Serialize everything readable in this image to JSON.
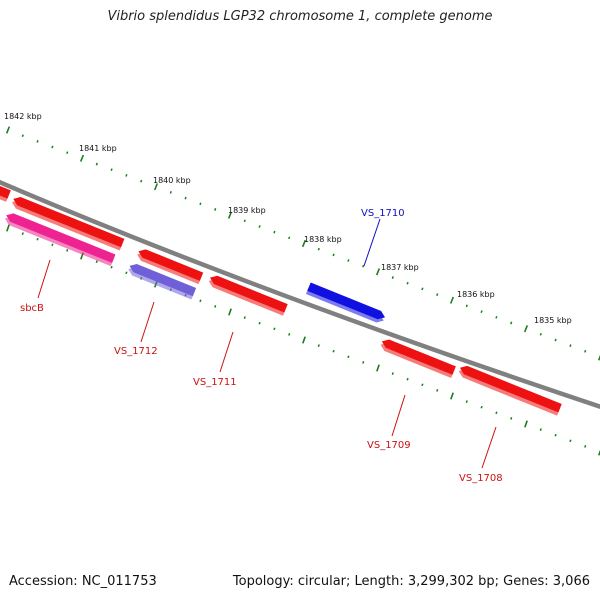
{
  "title": "Vibrio splendidus LGP32 chromosome 1, complete genome",
  "footer": {
    "accession": "Accession: NC_011753",
    "stats": "Topology: circular; Length: 3,299,302 bp; Genes: 3,066"
  },
  "colors": {
    "backbone": "#808080",
    "tick": "#1a7f1a",
    "gene_red": "#ee1111",
    "gene_pink": "#ee2290",
    "gene_purple": "#7060d8",
    "gene_blue": "#1010e0",
    "label_red": "#cc1111",
    "label_blue": "#1010c0"
  },
  "scale_labels": [
    "1842 kbp",
    "1841 kbp",
    "1840 kbp",
    "1839 kbp",
    "1838 kbp",
    "1837 kbp",
    "1836 kbp",
    "1835 kbp"
  ],
  "genes": [
    {
      "label": "",
      "strand": "+",
      "color": "gene_red"
    },
    {
      "label": "",
      "strand": "+",
      "color": "gene_red"
    },
    {
      "label": "sbcB",
      "strand": "+",
      "color": "gene_pink"
    },
    {
      "label": "",
      "strand": "+",
      "color": "gene_red"
    },
    {
      "label": "VS_1712",
      "strand": "+",
      "color": "gene_purple"
    },
    {
      "label": "VS_1711",
      "strand": "+",
      "color": "gene_red"
    },
    {
      "label": "VS_1710",
      "strand": "-",
      "color": "gene_blue"
    },
    {
      "label": "VS_1709",
      "strand": "+",
      "color": "gene_red"
    },
    {
      "label": "VS_1708",
      "strand": "+",
      "color": "gene_red"
    }
  ]
}
